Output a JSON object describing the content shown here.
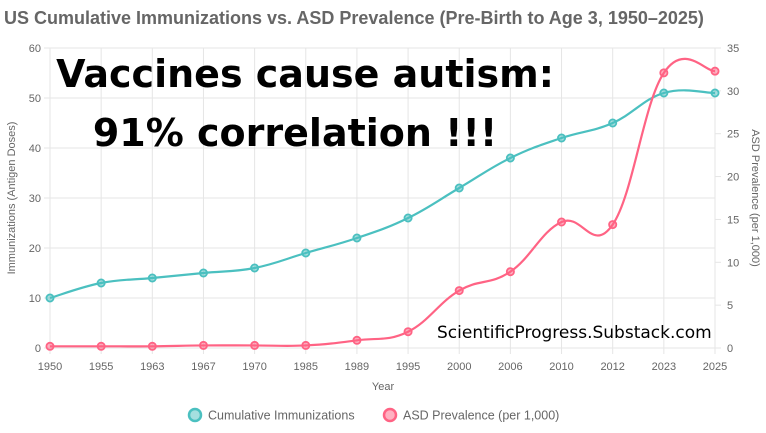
{
  "chart_data": {
    "type": "line",
    "title": "US Cumulative Immunizations vs. ASD Prevalence (Pre-Birth to Age 3, 1950–2025)",
    "xlabel": "Year",
    "ylabel_left": "Immunizations (Antigen Doses)",
    "ylabel_right": "ASD Prevalence (per 1,000)",
    "categories": [
      "1950",
      "1955",
      "1963",
      "1967",
      "1970",
      "1985",
      "1989",
      "1995",
      "2000",
      "2006",
      "2010",
      "2012",
      "2023",
      "2025"
    ],
    "ylim_left": [
      0,
      60
    ],
    "yticks_left": [
      "0",
      "10",
      "20",
      "30",
      "40",
      "50",
      "60"
    ],
    "ylim_right": [
      0,
      35
    ],
    "yticks_right": [
      "0",
      "5",
      "10",
      "15",
      "20",
      "25",
      "30",
      "35"
    ],
    "grid": true,
    "legend_position": "bottom",
    "series": [
      {
        "name": "Cumulative Immunizations",
        "axis": "left",
        "color": "#4bc0c0",
        "values": [
          10,
          13,
          14,
          15,
          16,
          19,
          22,
          26,
          32,
          38,
          42,
          45,
          51,
          51
        ]
      },
      {
        "name": "ASD Prevalence (per 1,000)",
        "axis": "right",
        "color": "#ff6384",
        "values": [
          0.2,
          0.2,
          0.2,
          0.3,
          0.3,
          0.3,
          0.9,
          1.9,
          6.7,
          8.9,
          14.7,
          14.4,
          32.1,
          32.3
        ]
      }
    ]
  },
  "overlay": {
    "headline_line1": "Vaccines cause autism:",
    "headline_line2": "91% correlation !!!",
    "watermark": "ScientificProgress.Substack.com"
  }
}
